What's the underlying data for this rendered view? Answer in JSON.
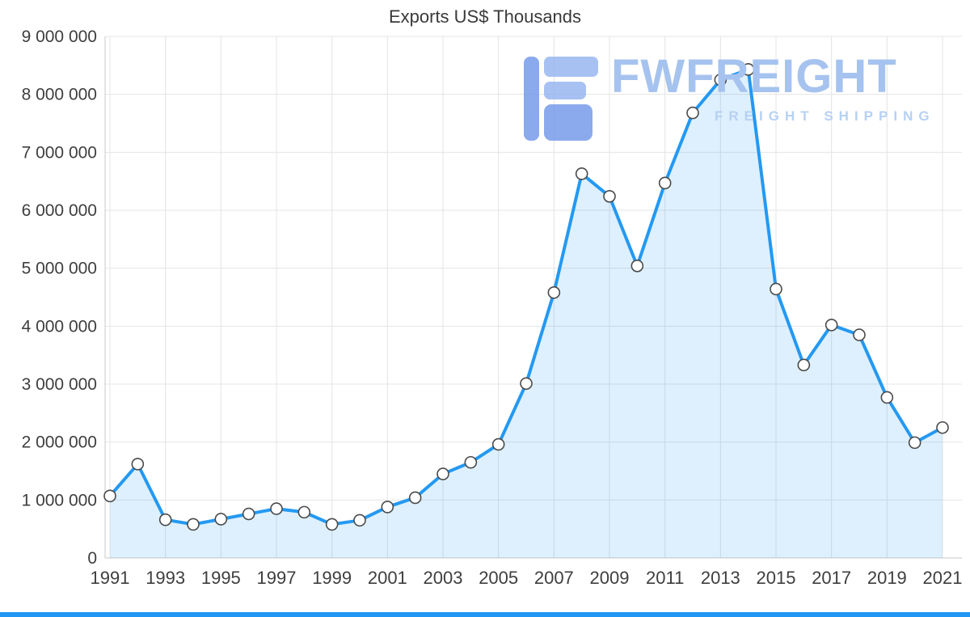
{
  "watermark": {
    "brand": "FWFREIGHT",
    "tagline": "FREIGHT SHIPPING",
    "brand_color": "#a6c3ef",
    "tagline_color": "#b6d1f3",
    "icon_color_dark": "#6d95e8",
    "icon_color_light": "#92b2f0"
  },
  "footer": {
    "bar_color": "#2196f3"
  },
  "chart_data": {
    "type": "area",
    "title": "Exports US$ Thousands",
    "x": [
      1991,
      1992,
      1993,
      1994,
      1995,
      1996,
      1997,
      1998,
      1999,
      2000,
      2001,
      2002,
      2003,
      2004,
      2005,
      2006,
      2007,
      2008,
      2009,
      2010,
      2011,
      2012,
      2013,
      2014,
      2015,
      2016,
      2017,
      2018,
      2019,
      2020,
      2021
    ],
    "values": [
      1070000,
      1620000,
      660000,
      580000,
      670000,
      760000,
      850000,
      790000,
      580000,
      650000,
      880000,
      1040000,
      1450000,
      1650000,
      1960000,
      3010000,
      4580000,
      6630000,
      6240000,
      5040000,
      6470000,
      7680000,
      8250000,
      8430000,
      4640000,
      3330000,
      4020000,
      3850000,
      2770000,
      1990000,
      2250000
    ],
    "ylim": [
      0,
      9000000
    ],
    "y_tick_step": 1000000,
    "y_tick_labels": [
      "0",
      "1 000 000",
      "2 000 000",
      "3 000 000",
      "4 000 000",
      "5 000 000",
      "6 000 000",
      "7 000 000",
      "8 000 000",
      "9 000 000"
    ],
    "x_tick_every": 2,
    "grid": true,
    "legend": "none",
    "line_color": "#2499f2",
    "fill_opacity": 0.15,
    "marker_fill": "#ffffff",
    "marker_stroke": "#4a4a4a",
    "grid_color": "#e4e4e4",
    "axis_color": "#c9c9c9",
    "axis_label_color": "#3e3e3e",
    "title_color": "#3a3a3a"
  }
}
